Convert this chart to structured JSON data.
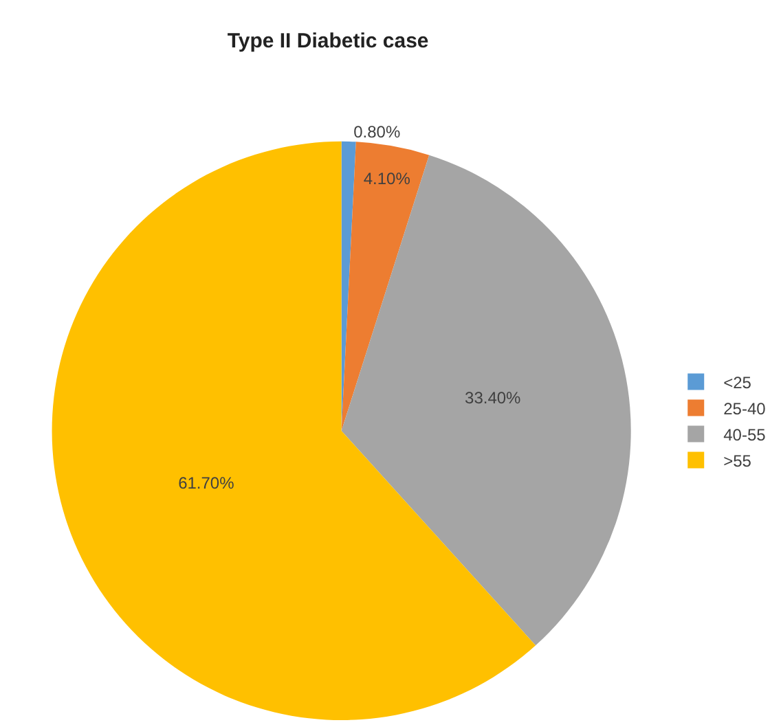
{
  "chart_data": {
    "type": "pie",
    "title": "Type II Diabetic case",
    "categories": [
      "<25",
      "25-40",
      "40-55",
      ">55"
    ],
    "values": [
      0.8,
      4.1,
      33.4,
      61.7
    ],
    "colors": [
      "#5b9bd5",
      "#ed7d31",
      "#a5a5a5",
      "#ffc000"
    ],
    "value_labels": [
      "0.80%",
      "4.10%",
      "33.40%",
      "61.70%"
    ],
    "legend": "right"
  }
}
